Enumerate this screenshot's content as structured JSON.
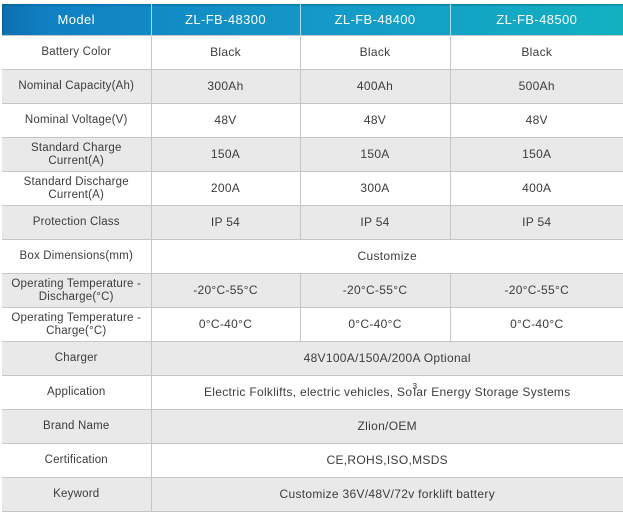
{
  "colors": {
    "header_gradient_left": "#0d6fae",
    "header_gradient_mid": "#149bc8",
    "header_gradient_right": "#12b1c0",
    "header_text": "#ffffff",
    "row_alt_bg": "#e9e9e9",
    "row_bg": "#ffffff",
    "border": "#c6c6c6",
    "text": "#3c3c3c"
  },
  "table": {
    "header": {
      "label": "Model",
      "columns": [
        "ZL-FB-48300",
        "ZL-FB-48400",
        "ZL-FB-48500"
      ]
    },
    "rows": [
      {
        "label": "Battery Color",
        "values": [
          "Black",
          "Black",
          "Black"
        ]
      },
      {
        "label": "Nominal Capacity(Ah)",
        "values": [
          "300Ah",
          "400Ah",
          "500Ah"
        ]
      },
      {
        "label": "Nominal Voltage(V)",
        "values": [
          "48V",
          "48V",
          "48V"
        ]
      },
      {
        "label": "Standard Charge Current(A)",
        "values": [
          "150A",
          "150A",
          "150A"
        ]
      },
      {
        "label": "Standard Discharge Current(A)",
        "values": [
          "200A",
          "300A",
          "400A"
        ]
      },
      {
        "label": "Protection Class",
        "values": [
          "IP 54",
          "IP 54",
          "IP 54"
        ]
      },
      {
        "label": "Box Dimensions(mm)",
        "merged": "Customize"
      },
      {
        "label": "Operating Temperature -Discharge(°C)",
        "values": [
          "-20°C-55°C",
          "-20°C-55°C",
          "-20°C-55°C"
        ]
      },
      {
        "label": "Operating Temperature -Charge(°C)",
        "values": [
          "0°C-40°C",
          "0°C-40°C",
          "0°C-40°C"
        ]
      },
      {
        "label": "Charger",
        "merged": "48V100A/150A/200A Optional"
      },
      {
        "label": "Application",
        "merged_prefix": "Electric Folklifts, electric vehicles, So",
        "merged_sup": "3",
        "merged_suffix": "lar Energy Storage Systems"
      },
      {
        "label": "Brand Name",
        "merged": "Zlion/OEM"
      },
      {
        "label": "Certification",
        "merged": "CE,ROHS,ISO,MSDS"
      },
      {
        "label": "Keyword",
        "merged": "Customize 36V/48V/72v forklift battery"
      }
    ]
  }
}
